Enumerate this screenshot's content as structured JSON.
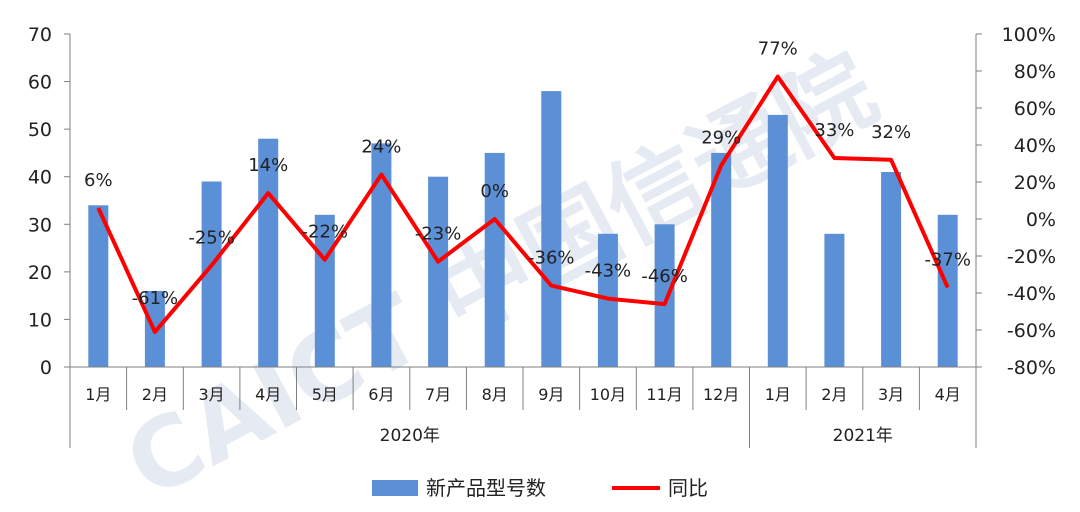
{
  "chart_data": {
    "type": "bar",
    "categories": [
      "1月",
      "2月",
      "3月",
      "4月",
      "5月",
      "6月",
      "7月",
      "8月",
      "9月",
      "10月",
      "11月",
      "12月",
      "1月",
      "2月",
      "3月",
      "4月"
    ],
    "groups": [
      {
        "label": "2020年",
        "count": 12
      },
      {
        "label": "2021年",
        "count": 4
      }
    ],
    "series": [
      {
        "name": "新产品型号数",
        "type": "bar",
        "axis": "left",
        "color": "#5b8fd6",
        "values": [
          34,
          16,
          39,
          48,
          32,
          47,
          40,
          45,
          58,
          28,
          30,
          45,
          53,
          28,
          41,
          32
        ]
      },
      {
        "name": "同比",
        "type": "line",
        "axis": "right",
        "color": "#ff0000",
        "values": [
          6,
          -61,
          -25,
          14,
          -22,
          24,
          -23,
          0,
          -36,
          -43,
          -46,
          29,
          77,
          33,
          32,
          -37
        ],
        "labels": [
          "6%",
          "-61%",
          "-25%",
          "14%",
          "-22%",
          "24%",
          "-23%",
          "0%",
          "-36%",
          "-43%",
          "-46%",
          "29%",
          "77%",
          "33%",
          "32%",
          "-37%"
        ]
      }
    ],
    "ylim_left": [
      0,
      70
    ],
    "yticks_left": [
      0,
      10,
      20,
      30,
      40,
      50,
      60,
      70
    ],
    "ylim_right": [
      -80,
      100
    ],
    "yticks_right": [
      "-80%",
      "-60%",
      "-40%",
      "-20%",
      "0%",
      "20%",
      "40%",
      "60%",
      "80%",
      "100%"
    ],
    "yticks_right_values": [
      -80,
      -60,
      -40,
      -20,
      0,
      20,
      40,
      60,
      80,
      100
    ],
    "grid": false,
    "legend_position": "bottom",
    "watermark": "CAICT 中国信通院"
  }
}
